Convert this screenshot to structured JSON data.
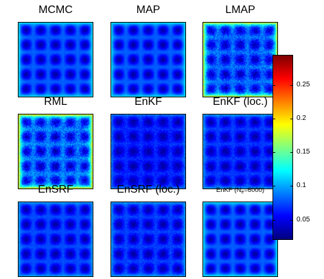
{
  "chart_data": {
    "type": "heatmap",
    "layout": "3x3 grid of square field maps with a shared vertical colorbar at right",
    "pattern": "periodic grid of dark-blue minima (about 5 x 5) on a lighter-blue background, higher values near the domain edges",
    "panels": [
      {
        "title": "MCMC",
        "subscript": "",
        "title_suffix": "",
        "background_level": 0.08,
        "minimum_level": 0.03,
        "edge_level": 0.12,
        "noise": 0.004
      },
      {
        "title": "MAP",
        "subscript": "",
        "title_suffix": "",
        "background_level": 0.08,
        "minimum_level": 0.03,
        "edge_level": 0.12,
        "noise": 0.004
      },
      {
        "title": "LMAP",
        "subscript": "",
        "title_suffix": "",
        "background_level": 0.085,
        "minimum_level": 0.035,
        "edge_level": 0.19,
        "noise": 0.018
      },
      {
        "title": "RML",
        "subscript": "",
        "title_suffix": "",
        "background_level": 0.09,
        "minimum_level": 0.035,
        "edge_level": 0.2,
        "noise": 0.02
      },
      {
        "title": "EnKF",
        "subscript": "",
        "title_suffix": "",
        "background_level": 0.065,
        "minimum_level": 0.03,
        "edge_level": 0.09,
        "noise": 0.012
      },
      {
        "title": "EnKF (loc.)",
        "subscript": "",
        "title_suffix": "",
        "background_level": 0.07,
        "minimum_level": 0.03,
        "edge_level": 0.1,
        "noise": 0.01
      },
      {
        "title": "EnSRF",
        "subscript": "",
        "title_suffix": "",
        "background_level": 0.075,
        "minimum_level": 0.03,
        "edge_level": 0.1,
        "noise": 0.006
      },
      {
        "title": "EnSRF (loc.)",
        "subscript": "",
        "title_suffix": "",
        "background_level": 0.072,
        "minimum_level": 0.03,
        "edge_level": 0.1,
        "noise": 0.01
      },
      {
        "title": "EnKF (N",
        "subscript": "e",
        "title_suffix": "=6000)",
        "background_level": 0.08,
        "minimum_level": 0.03,
        "edge_level": 0.12,
        "noise": 0.004
      }
    ],
    "colorbar": {
      "colormap": "jet",
      "range": [
        0.02,
        0.295
      ],
      "ticks": [
        {
          "value": 0.05,
          "label": "0.05"
        },
        {
          "value": 0.1,
          "label": "0.1"
        },
        {
          "value": 0.15,
          "label": "0.15"
        },
        {
          "value": 0.2,
          "label": "0.2"
        },
        {
          "value": 0.25,
          "label": "0.25"
        }
      ]
    },
    "colors": {
      "dark_red": "#800000",
      "red": "#ff0000",
      "yellow": "#ffff00",
      "cyan": "#00ffff",
      "blue": "#0000ff",
      "dark_blue": "#00008f"
    }
  }
}
